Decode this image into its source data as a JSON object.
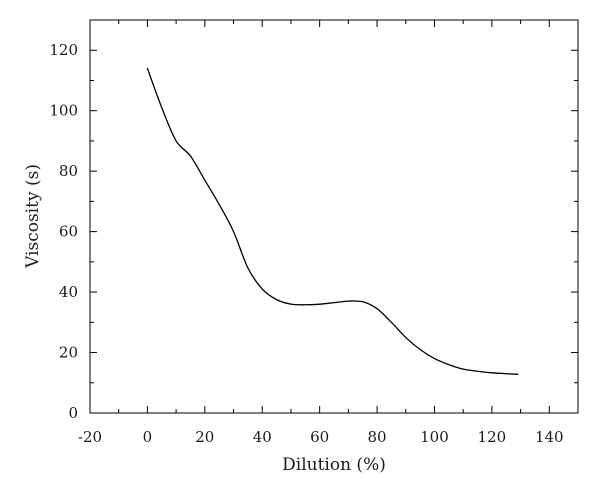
{
  "chart_data": {
    "type": "line",
    "title": "",
    "xlabel": "Dilution (%)",
    "ylabel": "Viscosity (s)",
    "xlim": [
      -20,
      150
    ],
    "ylim": [
      0,
      130
    ],
    "x_ticks": [
      -20,
      0,
      20,
      40,
      60,
      80,
      100,
      120,
      140
    ],
    "y_ticks": [
      0,
      20,
      40,
      60,
      80,
      100,
      120
    ],
    "x_minor_step": 10,
    "y_minor_step": 10,
    "grid": false,
    "legend": "none",
    "series": [
      {
        "color": "#000000",
        "x": [
          0,
          5,
          10,
          15,
          20,
          25,
          30,
          35,
          40,
          45,
          50,
          55,
          60,
          65,
          70,
          75,
          80,
          85,
          90,
          95,
          100,
          105,
          110,
          115,
          120,
          125,
          129
        ],
        "y": [
          114,
          101,
          90,
          85,
          77,
          69,
          60,
          48,
          41,
          37.5,
          36,
          35.8,
          36,
          36.5,
          37,
          36.8,
          34.5,
          30,
          25,
          21,
          18,
          16,
          14.5,
          13.8,
          13.3,
          13,
          12.8
        ]
      }
    ]
  }
}
